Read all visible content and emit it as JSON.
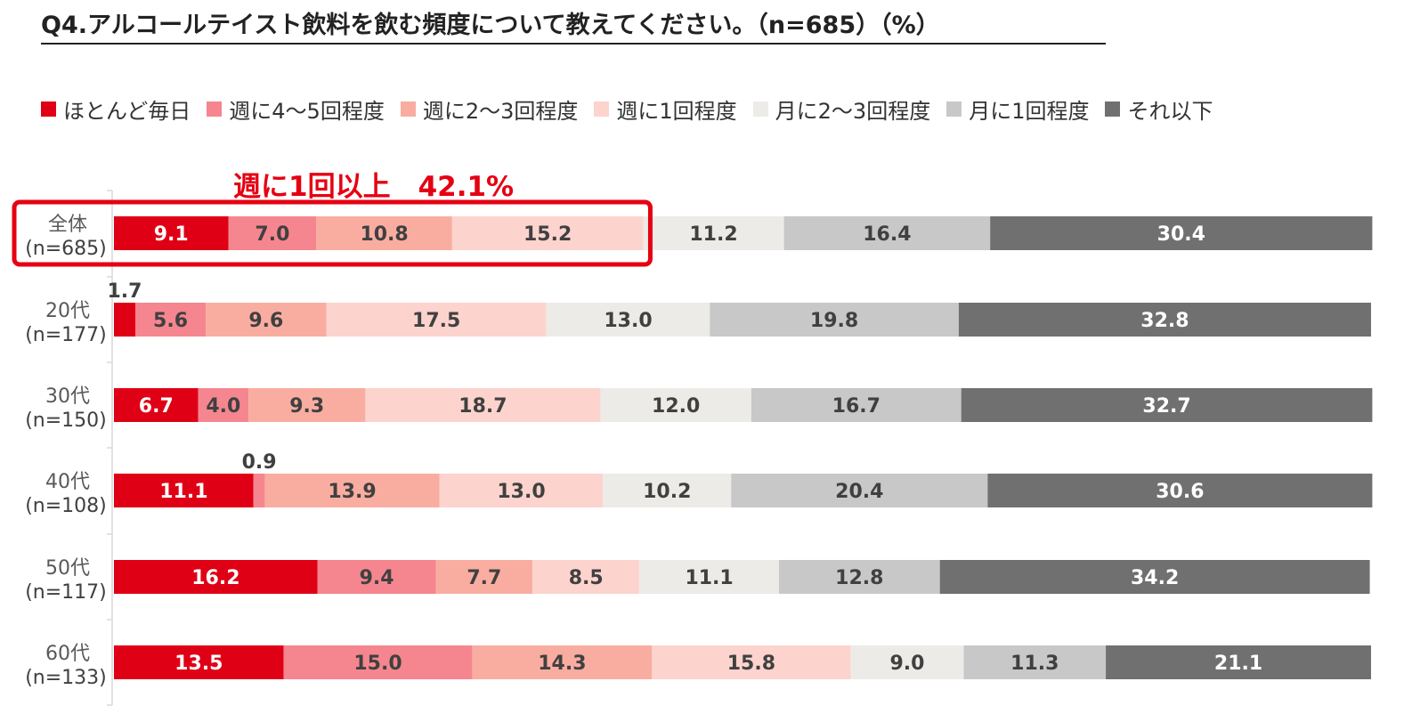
{
  "title": "Q4.アルコールテイスト飲料を飲む頻度について教えてください。（n=685）（%）",
  "highlight": {
    "label": "週に1回以上　42.1%",
    "row": 0,
    "series_count": 4,
    "color": "#e50012"
  },
  "chart_data": {
    "type": "bar",
    "orientation": "horizontal",
    "stacked": true,
    "xlim": [
      0,
      100
    ],
    "categories": [
      {
        "name": "全体",
        "n": "(n=685)"
      },
      {
        "name": "20代",
        "n": "(n=177)"
      },
      {
        "name": "30代",
        "n": "(n=150)"
      },
      {
        "name": "40代",
        "n": "(n=108)"
      },
      {
        "name": "50代",
        "n": "(n=117)"
      },
      {
        "name": "60代",
        "n": "(n=133)"
      }
    ],
    "series": [
      {
        "name": "ほとんど毎日",
        "color": "#e00015",
        "label_color": "#ffffff",
        "values": [
          9.1,
          1.7,
          6.7,
          11.1,
          16.2,
          13.5
        ]
      },
      {
        "name": "週に4～5回程度",
        "color": "#f5868f",
        "label_color": "#404040",
        "values": [
          7.0,
          5.6,
          4.0,
          0.9,
          9.4,
          15.0
        ]
      },
      {
        "name": "週に2～3回程度",
        "color": "#f9ada1",
        "label_color": "#404040",
        "values": [
          10.8,
          9.6,
          9.3,
          13.9,
          7.7,
          14.3
        ]
      },
      {
        "name": "週に1回程度",
        "color": "#fdd3ce",
        "label_color": "#404040",
        "values": [
          15.2,
          17.5,
          18.7,
          13.0,
          8.5,
          15.8
        ]
      },
      {
        "name": "月に2～3回程度",
        "color": "#ecebe7",
        "label_color": "#404040",
        "values": [
          11.2,
          13.0,
          12.0,
          10.2,
          11.1,
          9.0
        ]
      },
      {
        "name": "月に1回程度",
        "color": "#c8c8c8",
        "label_color": "#404040",
        "values": [
          16.4,
          19.8,
          16.7,
          20.4,
          12.8,
          11.3
        ]
      },
      {
        "name": "それ以下",
        "color": "#707070",
        "label_color": "#ffffff",
        "values": [
          30.4,
          32.8,
          32.7,
          30.6,
          34.2,
          21.1
        ]
      }
    ],
    "grid": false,
    "legend": "top"
  }
}
